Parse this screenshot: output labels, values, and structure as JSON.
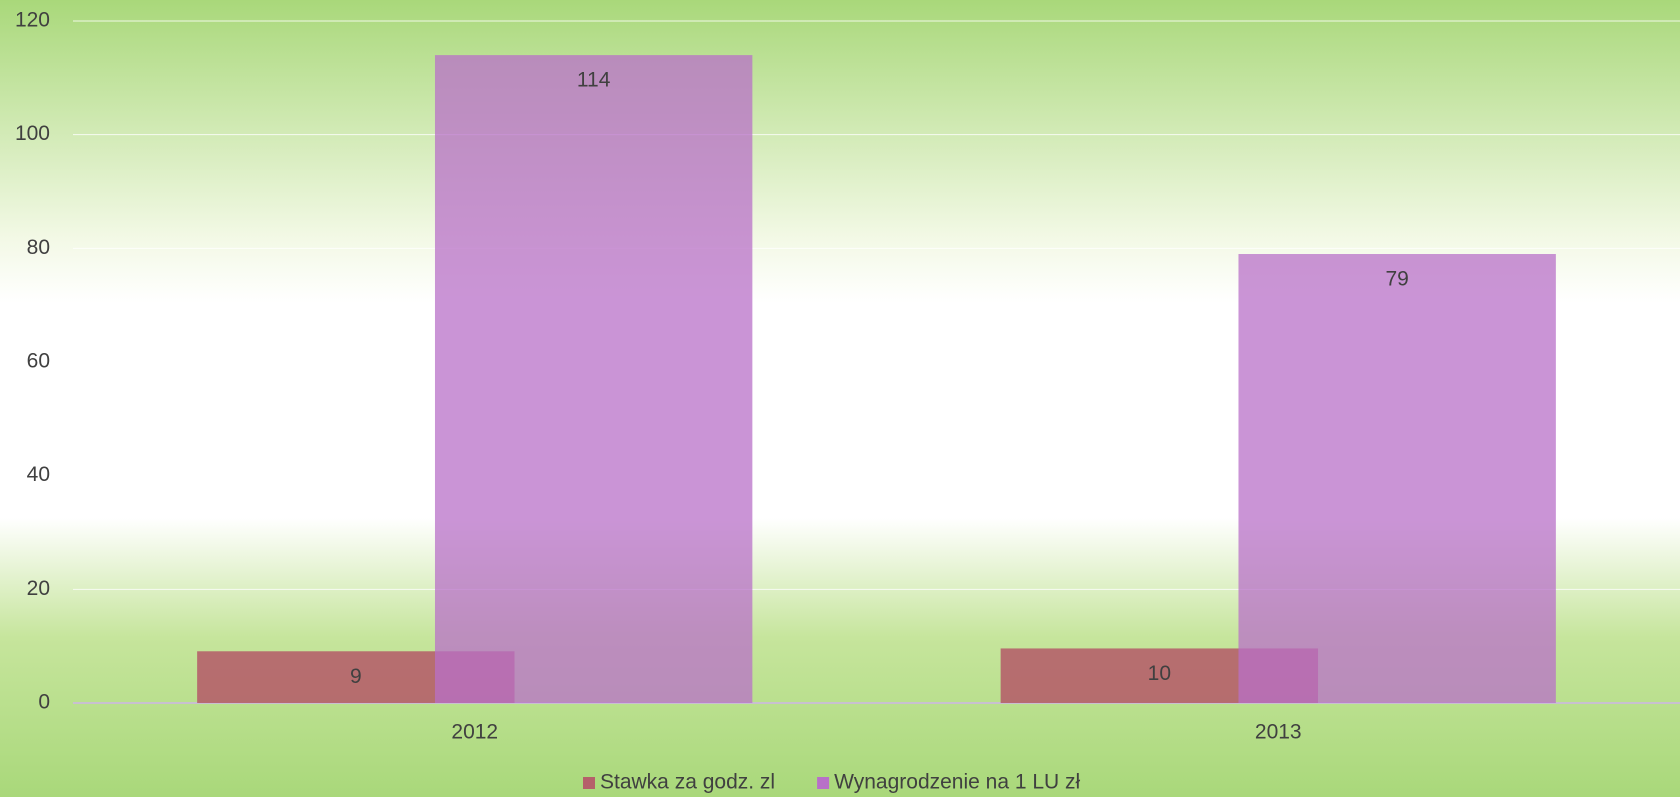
{
  "chart_data": {
    "type": "bar",
    "categories": [
      "2012",
      "2013"
    ],
    "series": [
      {
        "name": "Stawka za godz. zl",
        "color": "#b5606a",
        "values": [
          9.1,
          9.6
        ],
        "value_labels": [
          "9",
          "10"
        ]
      },
      {
        "name": "Wynagrodzenie na 1 LU zł",
        "color": "#b870c8",
        "values": [
          114,
          79
        ]
      }
    ],
    "ylim": [
      0,
      120
    ],
    "yticks": [
      0,
      20,
      40,
      60,
      80,
      100,
      120
    ],
    "grid": true,
    "legend": "bottom"
  }
}
